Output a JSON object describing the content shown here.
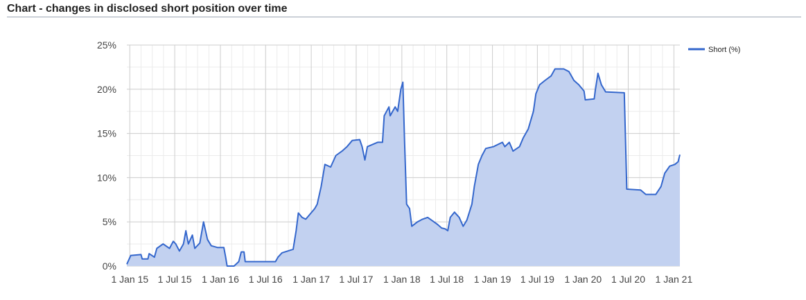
{
  "header": {
    "title": "Chart - changes in disclosed short position over time"
  },
  "colors": {
    "line": "#3366cc",
    "area": "#c2d1f0",
    "grid_major": "#cccccc",
    "grid_minor": "#ebebeb"
  },
  "chart_data": {
    "type": "area",
    "title": "Chart - changes in disclosed short position over time",
    "xlabel": "",
    "ylabel": "",
    "ylim": [
      0,
      25
    ],
    "yticks": [
      "0%",
      "5%",
      "10%",
      "15%",
      "20%",
      "25%"
    ],
    "xticks": [
      {
        "label": "1 Jan 15",
        "date": "2015-01-01"
      },
      {
        "label": "1 Jul 15",
        "date": "2015-07-01"
      },
      {
        "label": "1 Jan 16",
        "date": "2016-01-01"
      },
      {
        "label": "1 Jul 16",
        "date": "2016-07-01"
      },
      {
        "label": "1 Jan 17",
        "date": "2017-01-01"
      },
      {
        "label": "1 Jul 17",
        "date": "2017-07-01"
      },
      {
        "label": "1 Jan 18",
        "date": "2018-01-01"
      },
      {
        "label": "1 Jul 18",
        "date": "2018-07-01"
      },
      {
        "label": "1 Jan 19",
        "date": "2019-01-01"
      },
      {
        "label": "1 Jul 19",
        "date": "2019-07-01"
      },
      {
        "label": "1 Jan 20",
        "date": "2020-01-01"
      },
      {
        "label": "1 Jul 20",
        "date": "2020-07-01"
      },
      {
        "label": "1 Jan 21",
        "date": "2021-01-01"
      }
    ],
    "xlim": [
      "2014-12-20",
      "2021-01-25"
    ],
    "grid": true,
    "legend_position": "top-right",
    "series": [
      {
        "name": "Short (%)",
        "points": [
          [
            "2014-12-20",
            0.2
          ],
          [
            "2015-01-05",
            1.2
          ],
          [
            "2015-02-15",
            1.3
          ],
          [
            "2015-02-20",
            0.8
          ],
          [
            "2015-03-15",
            0.8
          ],
          [
            "2015-03-20",
            1.4
          ],
          [
            "2015-04-10",
            1.0
          ],
          [
            "2015-04-20",
            2.0
          ],
          [
            "2015-05-15",
            2.5
          ],
          [
            "2015-06-10",
            2.0
          ],
          [
            "2015-06-25",
            2.8
          ],
          [
            "2015-07-05",
            2.5
          ],
          [
            "2015-07-20",
            1.7
          ],
          [
            "2015-08-05",
            2.5
          ],
          [
            "2015-08-15",
            4.0
          ],
          [
            "2015-08-25",
            2.5
          ],
          [
            "2015-09-10",
            3.5
          ],
          [
            "2015-09-20",
            2.0
          ],
          [
            "2015-10-10",
            2.6
          ],
          [
            "2015-10-25",
            5.0
          ],
          [
            "2015-11-10",
            3.0
          ],
          [
            "2015-11-25",
            2.3
          ],
          [
            "2015-12-20",
            2.1
          ],
          [
            "2016-01-15",
            2.1
          ],
          [
            "2016-01-22",
            1.0
          ],
          [
            "2016-01-28",
            0.0
          ],
          [
            "2016-02-25",
            0.0
          ],
          [
            "2016-03-15",
            0.5
          ],
          [
            "2016-03-25",
            1.6
          ],
          [
            "2016-04-05",
            1.6
          ],
          [
            "2016-04-10",
            0.5
          ],
          [
            "2016-08-10",
            0.5
          ],
          [
            "2016-08-20",
            1.0
          ],
          [
            "2016-09-05",
            1.5
          ],
          [
            "2016-10-20",
            1.9
          ],
          [
            "2016-11-01",
            4.0
          ],
          [
            "2016-11-10",
            6.0
          ],
          [
            "2016-11-25",
            5.5
          ],
          [
            "2016-12-10",
            5.3
          ],
          [
            "2017-01-15",
            6.5
          ],
          [
            "2017-01-25",
            7.0
          ],
          [
            "2017-02-10",
            9.0
          ],
          [
            "2017-02-25",
            11.5
          ],
          [
            "2017-03-20",
            11.2
          ],
          [
            "2017-04-10",
            12.5
          ],
          [
            "2017-05-05",
            13.0
          ],
          [
            "2017-05-25",
            13.5
          ],
          [
            "2017-06-15",
            14.2
          ],
          [
            "2017-07-15",
            14.3
          ],
          [
            "2017-07-25",
            13.5
          ],
          [
            "2017-08-05",
            12.0
          ],
          [
            "2017-08-15",
            13.5
          ],
          [
            "2017-09-25",
            14.0
          ],
          [
            "2017-10-15",
            14.0
          ],
          [
            "2017-10-22",
            17.0
          ],
          [
            "2017-11-10",
            18.0
          ],
          [
            "2017-11-15",
            17.0
          ],
          [
            "2017-12-05",
            18.0
          ],
          [
            "2017-12-15",
            17.5
          ],
          [
            "2017-12-28",
            20.0
          ],
          [
            "2018-01-05",
            20.8
          ],
          [
            "2018-01-12",
            14.0
          ],
          [
            "2018-01-20",
            7.0
          ],
          [
            "2018-02-01",
            6.5
          ],
          [
            "2018-02-10",
            4.5
          ],
          [
            "2018-03-05",
            5.0
          ],
          [
            "2018-03-25",
            5.3
          ],
          [
            "2018-04-15",
            5.5
          ],
          [
            "2018-05-10",
            5.0
          ],
          [
            "2018-05-25",
            4.7
          ],
          [
            "2018-06-10",
            4.3
          ],
          [
            "2018-06-25",
            4.2
          ],
          [
            "2018-07-05",
            4.0
          ],
          [
            "2018-07-15",
            5.5
          ],
          [
            "2018-08-01",
            6.1
          ],
          [
            "2018-08-20",
            5.5
          ],
          [
            "2018-09-05",
            4.5
          ],
          [
            "2018-09-20",
            5.2
          ],
          [
            "2018-10-10",
            7.0
          ],
          [
            "2018-10-20",
            9.0
          ],
          [
            "2018-11-05",
            11.5
          ],
          [
            "2018-11-20",
            12.5
          ],
          [
            "2018-12-05",
            13.3
          ],
          [
            "2019-01-05",
            13.5
          ],
          [
            "2019-02-10",
            14.0
          ],
          [
            "2019-02-20",
            13.5
          ],
          [
            "2019-03-10",
            14.0
          ],
          [
            "2019-03-25",
            13.0
          ],
          [
            "2019-04-20",
            13.5
          ],
          [
            "2019-05-05",
            14.5
          ],
          [
            "2019-05-25",
            15.5
          ],
          [
            "2019-06-15",
            17.5
          ],
          [
            "2019-06-25",
            19.5
          ],
          [
            "2019-07-10",
            20.5
          ],
          [
            "2019-08-01",
            21.0
          ],
          [
            "2019-08-25",
            21.5
          ],
          [
            "2019-09-10",
            22.3
          ],
          [
            "2019-10-15",
            22.3
          ],
          [
            "2019-11-05",
            22.0
          ],
          [
            "2019-11-25",
            21.0
          ],
          [
            "2019-12-15",
            20.5
          ],
          [
            "2020-01-05",
            19.8
          ],
          [
            "2020-01-10",
            18.8
          ],
          [
            "2020-02-15",
            18.9
          ],
          [
            "2020-02-20",
            20.0
          ],
          [
            "2020-03-01",
            21.8
          ],
          [
            "2020-03-15",
            20.5
          ],
          [
            "2020-04-01",
            19.7
          ],
          [
            "2020-06-15",
            19.6
          ],
          [
            "2020-06-25",
            8.7
          ],
          [
            "2020-08-20",
            8.6
          ],
          [
            "2020-09-10",
            8.1
          ],
          [
            "2020-10-20",
            8.1
          ],
          [
            "2020-11-10",
            9.0
          ],
          [
            "2020-11-25",
            10.5
          ],
          [
            "2020-12-15",
            11.3
          ],
          [
            "2021-01-05",
            11.5
          ],
          [
            "2021-01-18",
            11.8
          ],
          [
            "2021-01-25",
            12.6
          ]
        ]
      }
    ]
  }
}
